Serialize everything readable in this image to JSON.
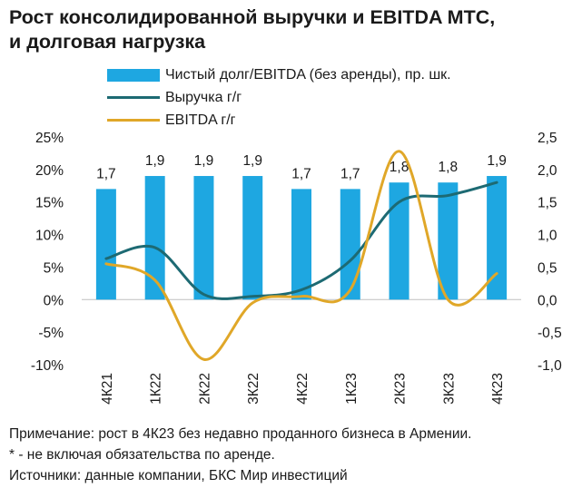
{
  "title_line1": "Рост консолидированной выручки и EBITDA МТС,",
  "title_line2": "и долговая нагрузка",
  "notes": [
    "Примечание: рост в 4К23 без недавно проданного бизнеса в Армении.",
    "* - не включая обязательства по аренде.",
    "Источники: данные компании, БКС Мир инвестиций"
  ],
  "colors": {
    "bar": "#1EA7E1",
    "revenue": "#1D6A73",
    "ebitda": "#E0A728"
  },
  "chart_data": {
    "type": "bar",
    "categories": [
      "4К21",
      "1К22",
      "2К22",
      "3К22",
      "4К22",
      "1К23",
      "2К23",
      "3К23",
      "4К23"
    ],
    "series": [
      {
        "name": "Чистый долг/EBITDA (без аренды), пр. шк.",
        "type": "bar",
        "axis": "right",
        "values": [
          1.7,
          1.9,
          1.9,
          1.9,
          1.7,
          1.7,
          1.8,
          1.8,
          1.9
        ],
        "labels": [
          "1,7",
          "1,9",
          "1,9",
          "1,9",
          "1,7",
          "1,7",
          "1,8",
          "1,8",
          "1,9"
        ]
      },
      {
        "name": "Выручка г/г",
        "type": "line",
        "axis": "left",
        "values": [
          6.3,
          8.0,
          0.8,
          0.5,
          1.5,
          6.0,
          15.0,
          16.0,
          18.0
        ]
      },
      {
        "name": "EBITDA г/г",
        "type": "line",
        "axis": "left",
        "values": [
          5.5,
          3.0,
          -9.2,
          -0.5,
          0.5,
          1.5,
          22.8,
          0.0,
          4.0
        ]
      }
    ],
    "left_axis": {
      "ticks": [
        "25%",
        "20%",
        "15%",
        "10%",
        "5%",
        "0%",
        "-5%",
        "-10%"
      ],
      "range": [
        -10,
        25
      ]
    },
    "right_axis": {
      "ticks": [
        "2,5",
        "2,0",
        "1,5",
        "1,0",
        "0,5",
        "0,0",
        "-0,5",
        "-1,0"
      ],
      "range": [
        -1.0,
        2.5
      ]
    },
    "grid": false,
    "legend_position": "top"
  }
}
